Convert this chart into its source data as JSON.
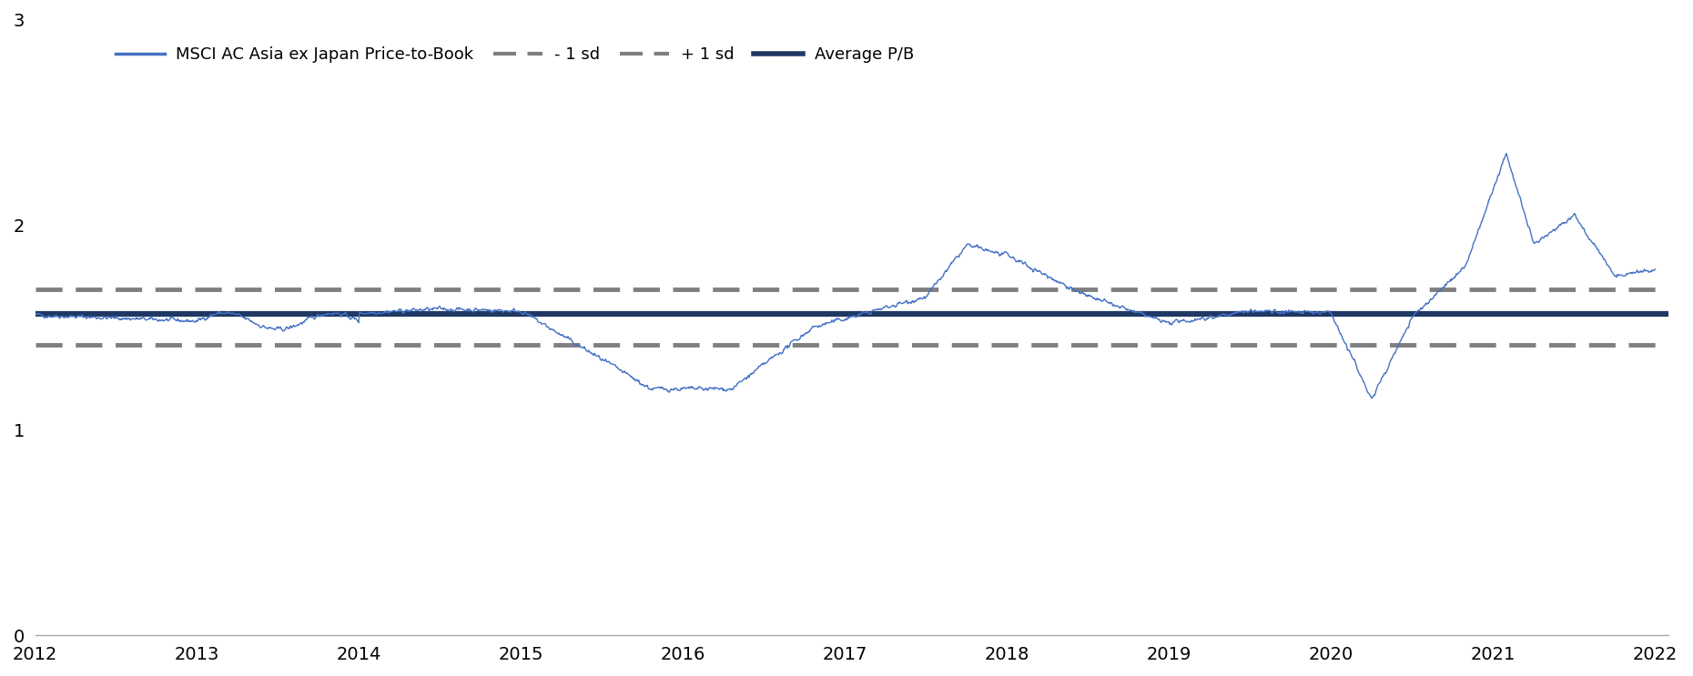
{
  "xlim": [
    2012.0,
    2022.08
  ],
  "ylim": [
    0,
    3.0
  ],
  "yticks": [
    0,
    1,
    2,
    3
  ],
  "xticks": [
    2012,
    2013,
    2014,
    2015,
    2016,
    2017,
    2018,
    2019,
    2020,
    2021,
    2022
  ],
  "average_pb": 1.565,
  "plus_1sd": 1.685,
  "minus_1sd": 1.415,
  "line_color": "#4472C4",
  "avg_color": "#1F3864",
  "sd_color": "#7F7F7F",
  "legend_labels": [
    "MSCI AC Asia ex Japan Price-to-Book",
    "- 1 sd",
    "+ 1 sd",
    "Average P/B"
  ]
}
